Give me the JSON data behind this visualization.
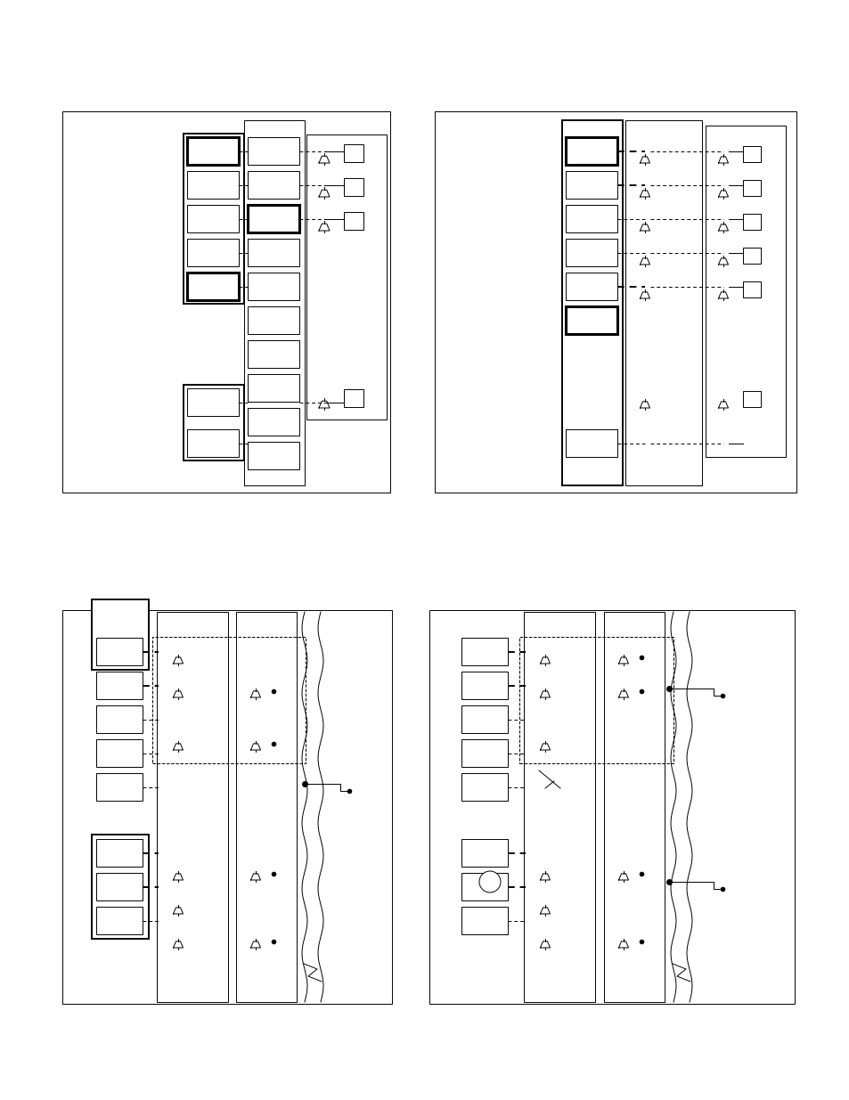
{
  "bg": "#ffffff",
  "fw": 9.54,
  "fh": 12.35
}
